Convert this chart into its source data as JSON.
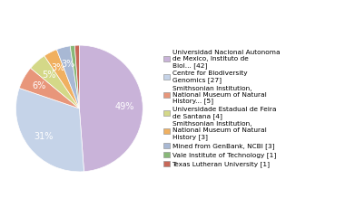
{
  "labels": [
    "Universidad Nacional Autonoma\nde Mexico, Instituto de\nBiol... [42]",
    "Centre for Biodiversity\nGenomics [27]",
    "Smithsonian Institution,\nNational Museum of Natural\nHistory... [5]",
    "Universidade Estadual de Feira\nde Santana [4]",
    "Smithsonian Institution,\nNational Museum of Natural\nHistory [3]",
    "Mined from GenBank, NCBI [3]",
    "Vale Institute of Technology [1]",
    "Texas Lutheran University [1]"
  ],
  "values": [
    42,
    27,
    5,
    4,
    3,
    3,
    1,
    1
  ],
  "colors": [
    "#c9b3d9",
    "#c5d3e8",
    "#e8967a",
    "#d4d888",
    "#f0b060",
    "#a8b8d4",
    "#88b878",
    "#c86858"
  ],
  "pct_threshold": 2.0,
  "startangle": 90,
  "figsize": [
    3.8,
    2.4
  ],
  "dpi": 100,
  "legend_fontsize": 5.3,
  "pct_fontsize": 7.0
}
